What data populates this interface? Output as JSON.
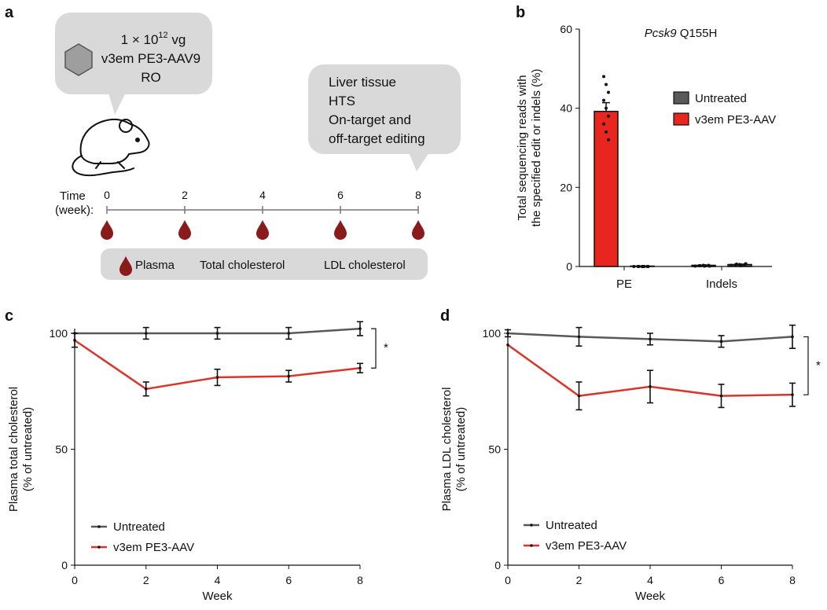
{
  "panels": {
    "a": "a",
    "b": "b",
    "c": "c",
    "d": "d"
  },
  "schematic": {
    "injection_bubble": {
      "dose_base": "1 × 10",
      "dose_exp": "12",
      "dose_unit": " vg",
      "construct": "v3em PE3-AAV9",
      "route": "RO"
    },
    "readout_bubble": {
      "lines": [
        "Liver tissue",
        "HTS",
        "On-target and",
        "off-target editing"
      ]
    },
    "timeline": {
      "label_line1": "Time",
      "label_line2": "(week):",
      "ticks": [
        "0",
        "2",
        "4",
        "6",
        "8"
      ]
    },
    "legend_box": {
      "plasma": "Plasma",
      "total": "Total cholesterol",
      "ldl": "LDL cholesterol"
    },
    "colors": {
      "bubble": "#d9d9d9",
      "blood": "#8b1a1a",
      "mouse": "#111111"
    },
    "icons": {
      "hexagon": "aav-hexagon-icon",
      "mouse": "mouse-icon",
      "drop": "blood-drop-icon"
    }
  },
  "chart_data": [
    {
      "panel": "b",
      "type": "bar",
      "title_italic": "Pcsk9",
      "title_rest": " Q155H",
      "ylabel_line1": "Total sequencing reads with",
      "ylabel_line2": "the specified edit or indels (%)",
      "ylim": [
        0,
        60
      ],
      "yticks": [
        0,
        20,
        40,
        60
      ],
      "categories": [
        "PE",
        "Indels"
      ],
      "series": [
        {
          "name": "Untreated",
          "color": "#595959",
          "values": [
            0.1,
            0.5
          ],
          "errors": [
            0,
            0.1
          ],
          "points": [
            [
              0,
              0,
              0,
              0,
              0,
              0,
              0,
              0
            ],
            [
              0.3,
              0.4,
              0.5,
              0.6,
              0.2,
              0.5,
              0.4,
              0.7
            ]
          ]
        },
        {
          "name": "v3em PE3-AAV",
          "color": "#e8251f",
          "values": [
            39.2,
            0.3
          ],
          "errors": [
            2.2,
            0.1
          ],
          "points": [
            [
              48,
              46,
              44,
              42,
              40,
              38,
              36,
              34,
              32
            ],
            [
              0.1,
              0.2,
              0.3,
              0.2,
              0.1,
              0.3,
              0.2,
              0.1
            ]
          ]
        }
      ],
      "legend": [
        "Untreated",
        "v3em PE3-AAV"
      ]
    },
    {
      "panel": "c",
      "type": "line",
      "xlabel": "Week",
      "ylabel_line1": "Plasma total cholesterol",
      "ylabel_line2": "(% of untreated)",
      "xlim": [
        0,
        8
      ],
      "ylim": [
        0,
        100
      ],
      "xticks": [
        0,
        2,
        4,
        6,
        8
      ],
      "yticks": [
        0,
        50,
        100
      ],
      "annotation": "*",
      "series": [
        {
          "name": "Untreated",
          "color": "#595959",
          "x": [
            0,
            2,
            4,
            6,
            8
          ],
          "y": [
            100,
            100,
            100,
            100,
            102
          ],
          "err": [
            0,
            2.5,
            2.5,
            2.5,
            3
          ]
        },
        {
          "name": "v3em PE3-AAV",
          "color": "#d9362b",
          "x": [
            0,
            2,
            4,
            6,
            8
          ],
          "y": [
            97,
            76,
            81,
            81.5,
            85
          ],
          "err": [
            3,
            3,
            3.5,
            2.5,
            2
          ]
        }
      ]
    },
    {
      "panel": "d",
      "type": "line",
      "xlabel": "Week",
      "ylabel_line1": "Plasma LDL cholesterol",
      "ylabel_line2": "(% of untreated)",
      "xlim": [
        0,
        8
      ],
      "ylim": [
        0,
        100
      ],
      "xticks": [
        0,
        2,
        4,
        6,
        8
      ],
      "yticks": [
        0,
        50,
        100
      ],
      "annotation": "*",
      "series": [
        {
          "name": "Untreated",
          "color": "#595959",
          "x": [
            0,
            2,
            4,
            6,
            8
          ],
          "y": [
            100,
            98.5,
            97.5,
            96.5,
            98.5
          ],
          "err": [
            1.5,
            4,
            2.5,
            2.5,
            5
          ]
        },
        {
          "name": "v3em PE3-AAV",
          "color": "#d9362b",
          "x": [
            0,
            2,
            4,
            6,
            8
          ],
          "y": [
            95,
            73,
            77,
            73,
            73.5
          ],
          "err": [
            0,
            6,
            7,
            5,
            5
          ]
        }
      ]
    }
  ]
}
